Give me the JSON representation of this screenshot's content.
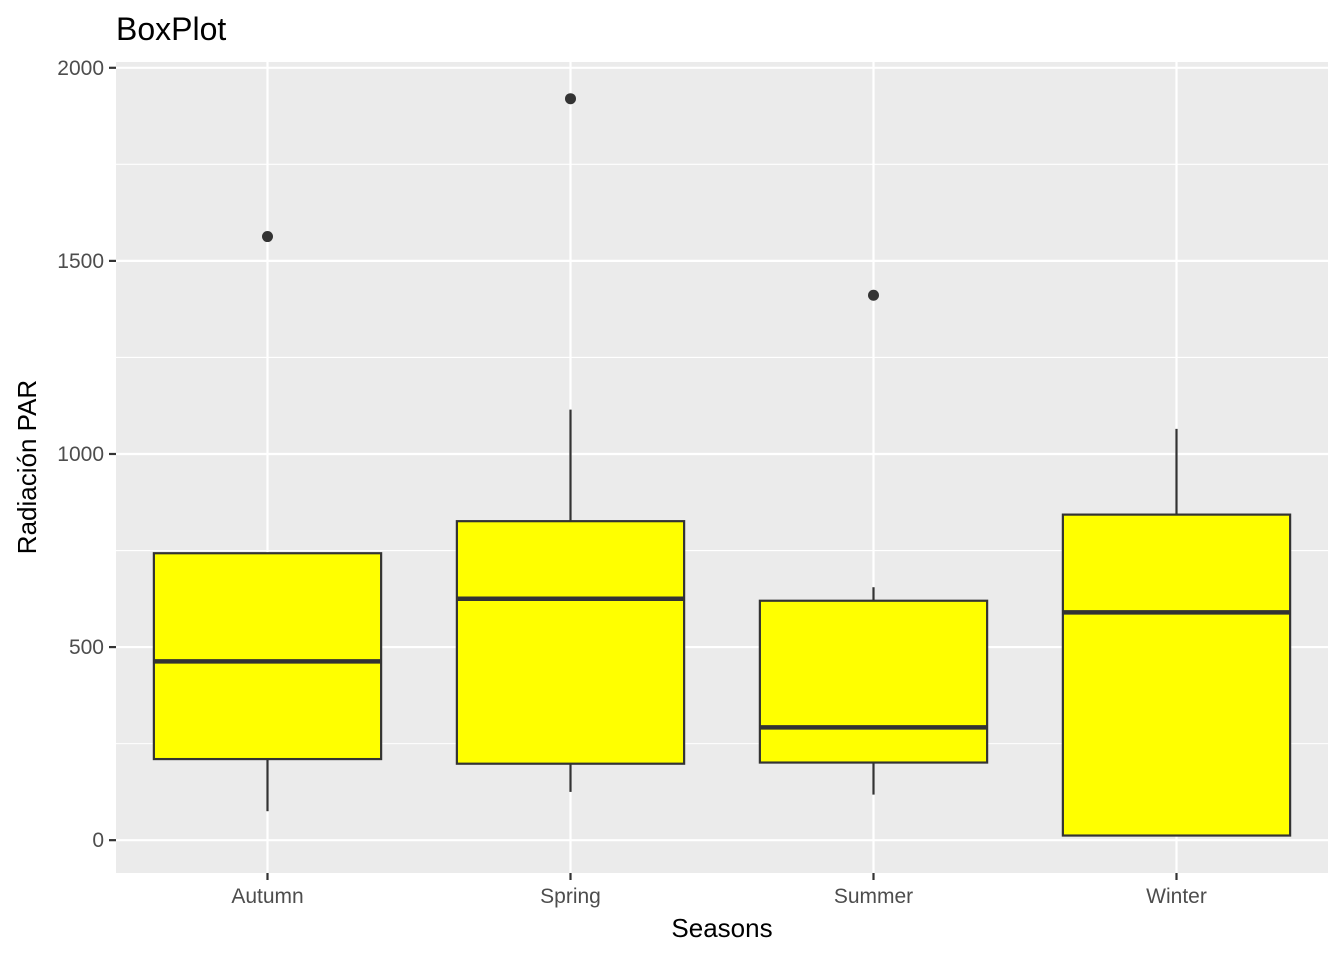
{
  "chart_data": {
    "type": "box",
    "title": "BoxPlot",
    "xlabel": "Seasons",
    "ylabel": "Radiación PAR",
    "ylim": [
      -85,
      2015
    ],
    "yticks": [
      0,
      500,
      1000,
      1500,
      2000
    ],
    "grid": true,
    "legend": "none",
    "colors": {
      "box_fill": "#FFFF00",
      "box_stroke": "#333333",
      "panel_bg": "#EBEBEB",
      "grid": "#FFFFFF",
      "outlier": "#333333"
    },
    "categories": [
      "Autumn",
      "Spring",
      "Summer",
      "Winter"
    ],
    "boxes": [
      {
        "category": "Autumn",
        "whisker_low": 75,
        "q1": 210,
        "median": 463,
        "q3": 743,
        "whisker_high": 743,
        "outliers": [
          1563
        ]
      },
      {
        "category": "Spring",
        "whisker_low": 125,
        "q1": 198,
        "median": 625,
        "q3": 826,
        "whisker_high": 1115,
        "outliers": [
          1920
        ]
      },
      {
        "category": "Summer",
        "whisker_low": 118,
        "q1": 201,
        "median": 292,
        "q3": 620,
        "whisker_high": 655,
        "outliers": [
          1411
        ]
      },
      {
        "category": "Winter",
        "whisker_low": 12,
        "q1": 12,
        "median": 590,
        "q3": 843,
        "whisker_high": 1065,
        "outliers": []
      }
    ]
  }
}
